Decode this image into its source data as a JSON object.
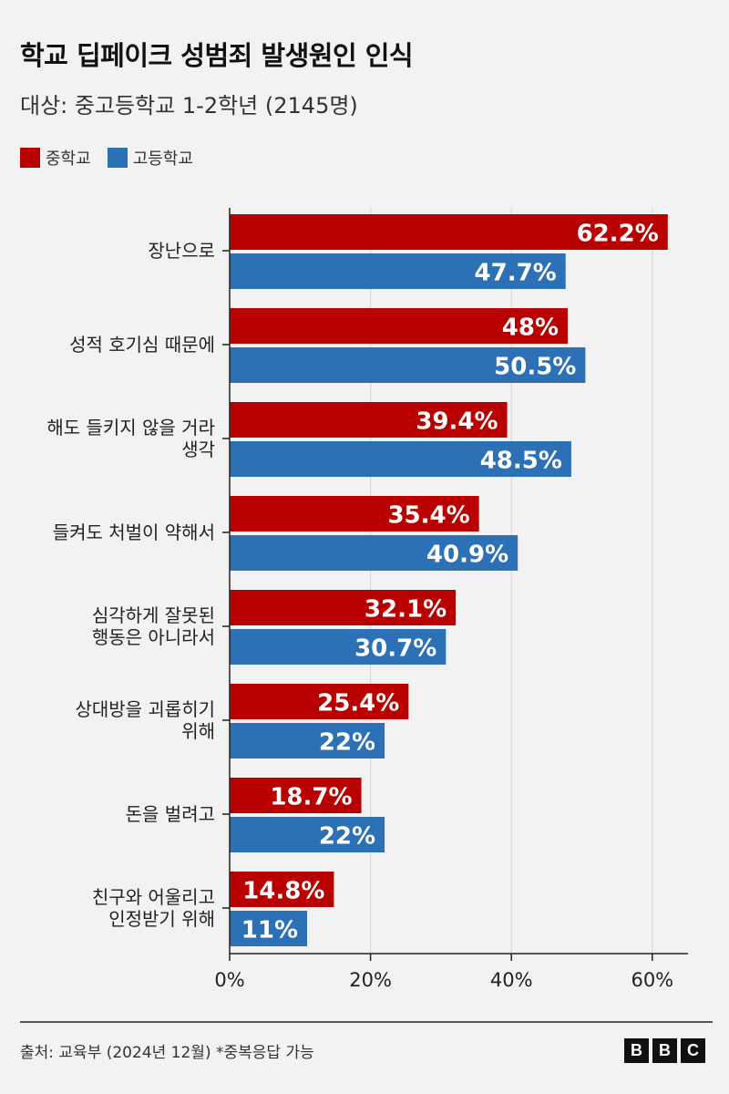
{
  "header": {
    "title": "학교 딥페이크 성범죄 발생원인 인식",
    "subtitle": "대상: 중고등학교 1-2학년 (2145명)"
  },
  "legend": {
    "items": [
      {
        "label": "중학교",
        "color": "#b80000"
      },
      {
        "label": "고등학교",
        "color": "#2c70b5"
      }
    ]
  },
  "chart_data": {
    "type": "bar",
    "orientation": "horizontal",
    "title": "학교 딥페이크 성범죄 발생원인 인식",
    "xlim": [
      0,
      62.2
    ],
    "xticks": [
      "0%",
      "20%",
      "40%",
      "60%"
    ],
    "grid": true,
    "categories": [
      [
        "장난으로"
      ],
      [
        "성적 호기심 때문에"
      ],
      [
        "해도 들키지 않을 거라",
        "생각"
      ],
      [
        "들켜도 처벌이 약해서"
      ],
      [
        "심각하게 잘못된",
        "행동은 아니라서"
      ],
      [
        "상대방을 괴롭히기",
        "위해"
      ],
      [
        "돈을 벌려고"
      ],
      [
        "친구와 어울리고",
        "인정받기 위해"
      ]
    ],
    "series": [
      {
        "name": "중학교",
        "color": "#b80000",
        "values": [
          62.2,
          48,
          39.4,
          35.4,
          32.1,
          25.4,
          18.7,
          14.8
        ],
        "labels": [
          "62.2%",
          "48%",
          "39.4%",
          "35.4%",
          "32.1%",
          "25.4%",
          "18.7%",
          "14.8%"
        ]
      },
      {
        "name": "고등학교",
        "color": "#2c70b5",
        "values": [
          47.7,
          50.5,
          48.5,
          40.9,
          30.7,
          22,
          22,
          11
        ],
        "labels": [
          "47.7%",
          "50.5%",
          "48.5%",
          "40.9%",
          "30.7%",
          "22%",
          "22%",
          "11%"
        ]
      }
    ]
  },
  "footer": {
    "source": "출처: 교육부 (2024년 12월) *중복응답 가능",
    "logo_letters": [
      "B",
      "B",
      "C"
    ]
  }
}
